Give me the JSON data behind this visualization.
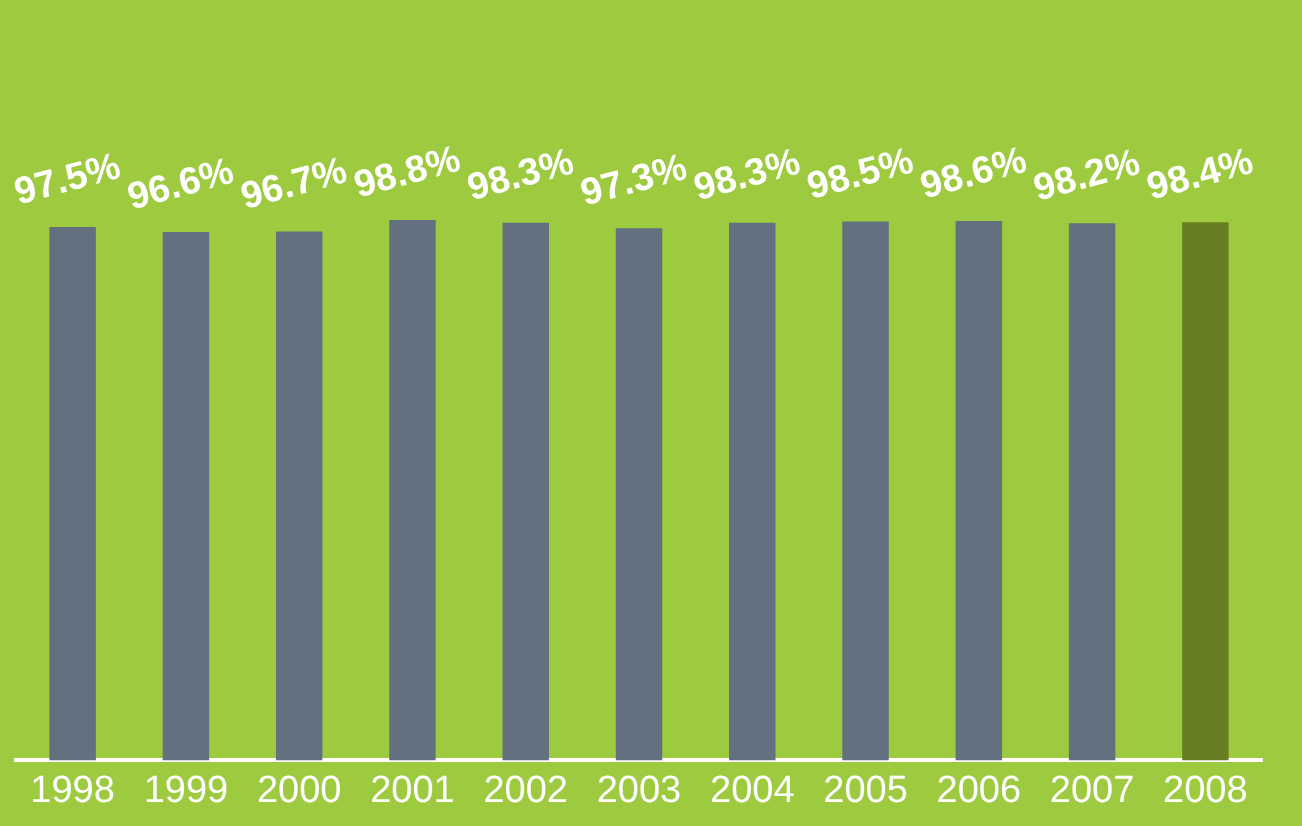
{
  "chart_data": {
    "type": "bar",
    "categories": [
      "1998",
      "1999",
      "2000",
      "2001",
      "2002",
      "2003",
      "2004",
      "2005",
      "2006",
      "2007",
      "2008"
    ],
    "values": [
      97.5,
      96.6,
      96.7,
      98.8,
      98.3,
      97.3,
      98.3,
      98.5,
      98.6,
      98.2,
      98.4
    ],
    "colors": [
      "#627080",
      "#627080",
      "#627080",
      "#627080",
      "#627080",
      "#627080",
      "#627080",
      "#627080",
      "#627080",
      "#627080",
      "#677f22"
    ],
    "value_labels": [
      "97.5%",
      "96.6%",
      "96.7%",
      "98.8%",
      "98.3%",
      "97.3%",
      "98.3%",
      "98.5%",
      "98.6%",
      "98.2%",
      "98.4%"
    ],
    "legend": false
  }
}
